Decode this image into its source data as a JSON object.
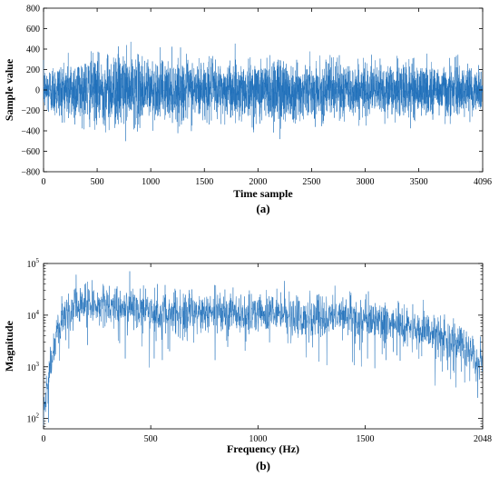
{
  "chart_data": [
    {
      "panel_label": "(a)",
      "type": "line",
      "title": "",
      "xlabel": "Time sample",
      "ylabel": "Sample value",
      "xlim": [
        0,
        4096
      ],
      "ylim": [
        -800,
        800
      ],
      "xticks": [
        0,
        500,
        1000,
        1500,
        2000,
        2500,
        3000,
        3500,
        4096
      ],
      "yticks": [
        -800,
        -600,
        -400,
        -200,
        0,
        200,
        400,
        600,
        800
      ],
      "grid": false,
      "legend": "none",
      "series": [
        {
          "color": "#1f6fba",
          "description_points": {
            "x": [
              0,
              230,
              520,
              700,
              1080,
              1400,
              1700,
              2000,
              2200,
              2300,
              2500,
              2650,
              3000,
              3300,
              3500,
              3800,
              4096
            ],
            "typical_envelope_pos": [
              320,
              650,
              520,
              600,
              410,
              500,
              420,
              460,
              500,
              460,
              360,
              510,
              380,
              390,
              380,
              430,
              300
            ],
            "typical_envelope_neg": [
              -320,
              -300,
              -430,
              -500,
              -430,
              -380,
              -360,
              -400,
              -600,
              -420,
              -340,
              -360,
              -330,
              -400,
              -360,
              -340,
              -280
            ]
          }
        }
      ]
    },
    {
      "panel_label": "(b)",
      "type": "line",
      "title": "",
      "xlabel": "Frequency (Hz)",
      "ylabel": "Magnitude",
      "xlim": [
        0,
        2048
      ],
      "ylim_log10": [
        1.8,
        5
      ],
      "yscale": "log",
      "xticks": [
        0,
        500,
        1000,
        1500,
        2048
      ],
      "yticks": [
        "10^2",
        "10^3",
        "10^4",
        "10^5"
      ],
      "grid": false,
      "legend": "none",
      "series": [
        {
          "color": "#1f6fba",
          "trend": {
            "x": [
              0,
              20,
              40,
              60,
              80,
              100,
              150,
              200,
              250,
              300,
              400,
              500,
              600,
              700,
              800,
              900,
              1000,
              1100,
              1200,
              1300,
              1400,
              1500,
              1600,
              1700,
              1800,
              1900,
              2000,
              2048
            ],
            "y": [
              150,
              400,
              1500,
              4000,
              7000,
              9000,
              14000,
              16000,
              17000,
              16000,
              14000,
              12000,
              11000,
              11000,
              11000,
              11000,
              11000,
              11000,
              10500,
              10000,
              10000,
              9000,
              8000,
              6500,
              5000,
              3500,
              2000,
              1200
            ]
          }
        }
      ]
    }
  ],
  "labels": {
    "a": "(a)",
    "b": "(b)",
    "a_ticks_y": [
      "800",
      "600",
      "400",
      "200",
      "0",
      "−200",
      "−400",
      "−600",
      "−800"
    ],
    "a_ticks_x": [
      "0",
      "500",
      "1000",
      "1500",
      "2000",
      "2500",
      "3000",
      "3500",
      "4096"
    ],
    "b_ticks_x": [
      "0",
      "500",
      "1000",
      "1500",
      "2048"
    ]
  }
}
